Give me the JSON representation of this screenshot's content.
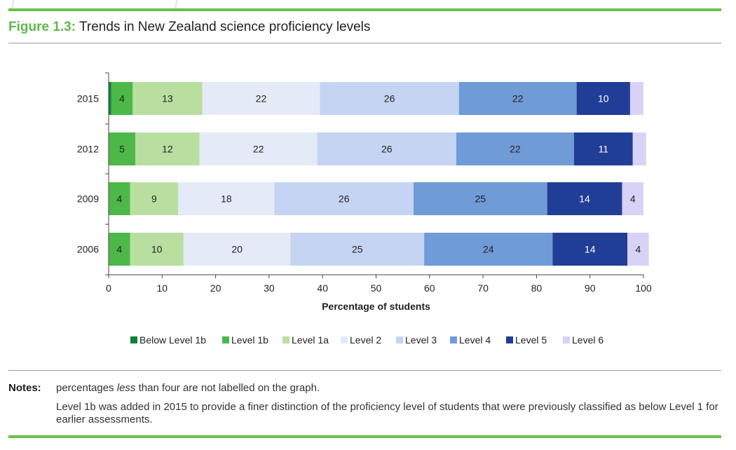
{
  "figure": {
    "number": "Figure 1.3:",
    "title": "Trends in New Zealand science proficiency levels"
  },
  "notes": {
    "label": "Notes:",
    "note1_before": "percentages ",
    "note1_emphasis": "less",
    "note1_after": " than four are not labelled on the graph.",
    "note2": "Level 1b was added in 2015 to provide a finer distinction of the proficiency level of students that were previously classified as below Level 1 for earlier assessments."
  },
  "chart_data": {
    "type": "bar",
    "orientation": "horizontal",
    "stacked": true,
    "categories": [
      "2015",
      "2012",
      "2009",
      "2006"
    ],
    "xlabel": "Percentage of students",
    "xlim": [
      0,
      100
    ],
    "xticks": [
      0,
      10,
      20,
      30,
      40,
      50,
      60,
      70,
      80,
      90,
      100
    ],
    "label_threshold": 4,
    "legend_position": "bottom",
    "series": [
      {
        "name": "Below Level 1b",
        "color": "#0e7f3e",
        "values": [
          0.5,
          0,
          0,
          0
        ]
      },
      {
        "name": "Level 1b",
        "color": "#4cb848",
        "values": [
          4,
          5,
          4,
          4
        ]
      },
      {
        "name": "Level 1a",
        "color": "#b8dfa0",
        "values": [
          13,
          12,
          9,
          10
        ]
      },
      {
        "name": "Level 2",
        "color": "#e4ebf7",
        "values": [
          22,
          22,
          18,
          20
        ]
      },
      {
        "name": "Level 3",
        "color": "#c5d4f2",
        "values": [
          26,
          26,
          26,
          25
        ]
      },
      {
        "name": "Level 4",
        "color": "#6f9bd6",
        "values": [
          22,
          22,
          25,
          24
        ]
      },
      {
        "name": "Level 5",
        "color": "#213e97",
        "values": [
          10,
          11,
          14,
          14
        ]
      },
      {
        "name": "Level 6",
        "color": "#d9d2f7",
        "values": [
          2.5,
          2.5,
          4,
          4
        ]
      }
    ]
  }
}
